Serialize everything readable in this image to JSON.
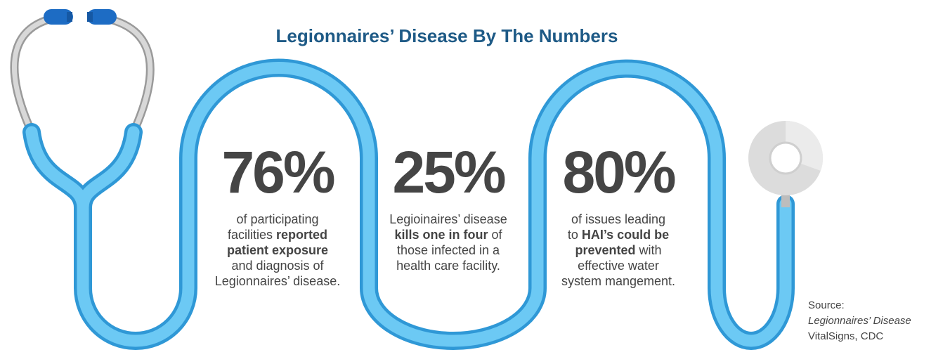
{
  "title": "Legionnaires’ Disease By The Numbers",
  "stats": [
    {
      "number": "76%",
      "lines": [
        [
          {
            "text": "of participating",
            "bold": false
          }
        ],
        [
          {
            "text": "facilities ",
            "bold": false
          },
          {
            "text": "reported",
            "bold": true
          }
        ],
        [
          {
            "text": "patient exposure",
            "bold": true
          }
        ],
        [
          {
            "text": "and diagnosis of",
            "bold": false
          }
        ],
        [
          {
            "text": "Legionnaires’ disease.",
            "bold": false
          }
        ]
      ]
    },
    {
      "number": "25%",
      "lines": [
        [
          {
            "text": "Legioinaires’ disease",
            "bold": false
          }
        ],
        [
          {
            "text": "kills one in four",
            "bold": true
          },
          {
            "text": " of",
            "bold": false
          }
        ],
        [
          {
            "text": "those infected in a",
            "bold": false
          }
        ],
        [
          {
            "text": "health care facility.",
            "bold": false
          }
        ]
      ]
    },
    {
      "number": "80%",
      "lines": [
        [
          {
            "text": "of issues leading",
            "bold": false
          }
        ],
        [
          {
            "text": "to ",
            "bold": false
          },
          {
            "text": "HAI’s could be",
            "bold": true
          }
        ],
        [
          {
            "text": "prevented",
            "bold": true
          },
          {
            "text": " with",
            "bold": false
          }
        ],
        [
          {
            "text": "effective water",
            "bold": false
          }
        ],
        [
          {
            "text": "system mangement.",
            "bold": false
          }
        ]
      ]
    }
  ],
  "source": [
    {
      "text": "Source:",
      "italic": false
    },
    {
      "text": "Legionnaires’ Disease",
      "italic": true
    },
    {
      "text": "VitalSigns, CDC",
      "italic": false
    }
  ]
}
